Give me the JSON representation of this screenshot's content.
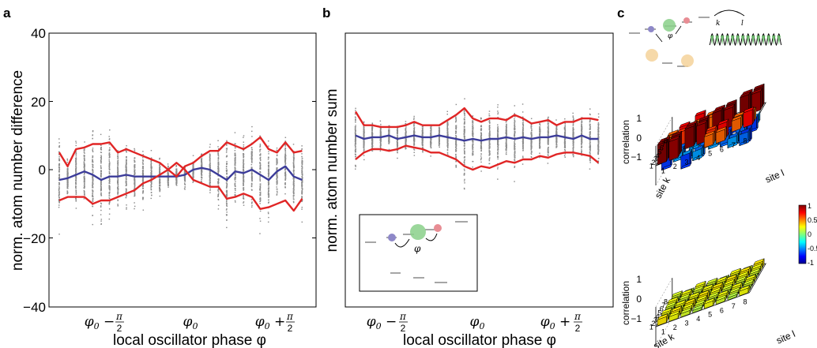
{
  "panels": {
    "a": "a",
    "b": "b",
    "c": "c"
  },
  "colors": {
    "data_points": "#8c8c8c",
    "mean": "#3c3c9a",
    "envelope": "#e02525"
  },
  "chart_data": [
    {
      "type": "scatter",
      "panel": "a",
      "ylabel": "norm. atom number difference",
      "xlabel": "local oscillator phase φ",
      "ylim": [
        -40,
        40
      ],
      "yticks": [
        "40",
        "20",
        "0",
        "−20",
        "−40"
      ],
      "xticks": [
        "φ0 − π/2",
        "φ0",
        "φ0 + π/2"
      ],
      "x_count": 30,
      "series": [
        {
          "role": "mean",
          "color": "#3c3c9a",
          "values": [
            -3,
            -2.5,
            -1.5,
            -0.5,
            -1.5,
            -3,
            -2,
            -2,
            -1.5,
            -2,
            -2,
            -2,
            -2,
            -2,
            -2,
            -1.5,
            0,
            0.5,
            0,
            -1.5,
            -3,
            -0.5,
            -1,
            0,
            -1.5,
            -3,
            -0.5,
            1,
            -2,
            -3
          ]
        },
        {
          "role": "upper",
          "color": "#e02525",
          "values": [
            5,
            1,
            6,
            6.5,
            7.5,
            7.5,
            8,
            5,
            6,
            5,
            4,
            3,
            2,
            0,
            -2,
            1,
            2,
            4,
            5.5,
            5.5,
            8,
            7,
            6,
            7.5,
            9.5,
            6,
            5,
            8,
            5,
            5.5
          ]
        },
        {
          "role": "lower",
          "color": "#e02525",
          "values": [
            -9,
            -8,
            -8,
            -8,
            -10,
            -9,
            -9,
            -8,
            -7,
            -6,
            -4,
            -3,
            -1.5,
            0,
            2,
            0,
            -3,
            -4,
            -5,
            -5,
            -8.5,
            -8,
            -7,
            -8,
            -11.5,
            -11,
            -10,
            -9,
            -12,
            -8.5
          ]
        }
      ]
    },
    {
      "type": "scatter",
      "panel": "b",
      "ylabel": "norm. atom number sum",
      "xlabel": "local oscillator phase φ",
      "xticks": [
        "φ0 − π/2",
        "φ0",
        "φ0 + π/2"
      ],
      "x_count": 30,
      "series": [
        {
          "role": "mean",
          "color": "#3c3c9a",
          "values": [
            10,
            9,
            9.5,
            9.5,
            10,
            9,
            9.5,
            10,
            9.5,
            9.5,
            10,
            9.5,
            9,
            8.5,
            9,
            8.5,
            9,
            9,
            9.5,
            9,
            9.5,
            9,
            9.5,
            9.5,
            10,
            9.5,
            9,
            10,
            9,
            9
          ]
        },
        {
          "role": "upper",
          "color": "#e02525",
          "values": [
            17,
            13,
            13,
            12.5,
            12.5,
            12.5,
            13,
            14,
            13,
            13,
            13,
            14.5,
            16,
            18,
            15,
            14,
            15,
            15,
            14.5,
            16,
            15,
            13.5,
            14,
            14.5,
            13,
            14,
            14,
            15,
            15,
            14.5
          ]
        },
        {
          "role": "lower",
          "color": "#e02525",
          "values": [
            3,
            5,
            6,
            6,
            5.5,
            6,
            7,
            6.5,
            6,
            5,
            5,
            4,
            3,
            1,
            0,
            1,
            0.5,
            1.5,
            2.5,
            2,
            3,
            3,
            4,
            3.5,
            4.5,
            5,
            5,
            4.5,
            4,
            2
          ]
        }
      ]
    },
    {
      "type": "bar",
      "panel": "c",
      "title": "",
      "ylabel": "correlation",
      "xlabel": "site l",
      "zlabel": "site k",
      "zlim": [
        -1,
        1
      ],
      "yticks": [
        "1",
        "0",
        "−1"
      ],
      "site_ticks": [
        "1",
        "2",
        "3",
        "4",
        "5",
        "6",
        "7",
        "8"
      ]
    }
  ],
  "panel_c": {
    "colorbar_ticks": [
      "1",
      "0.5",
      "0",
      "-0.5",
      "-1"
    ],
    "phi_label": "φ",
    "k_label": "k",
    "l_label": "l"
  }
}
